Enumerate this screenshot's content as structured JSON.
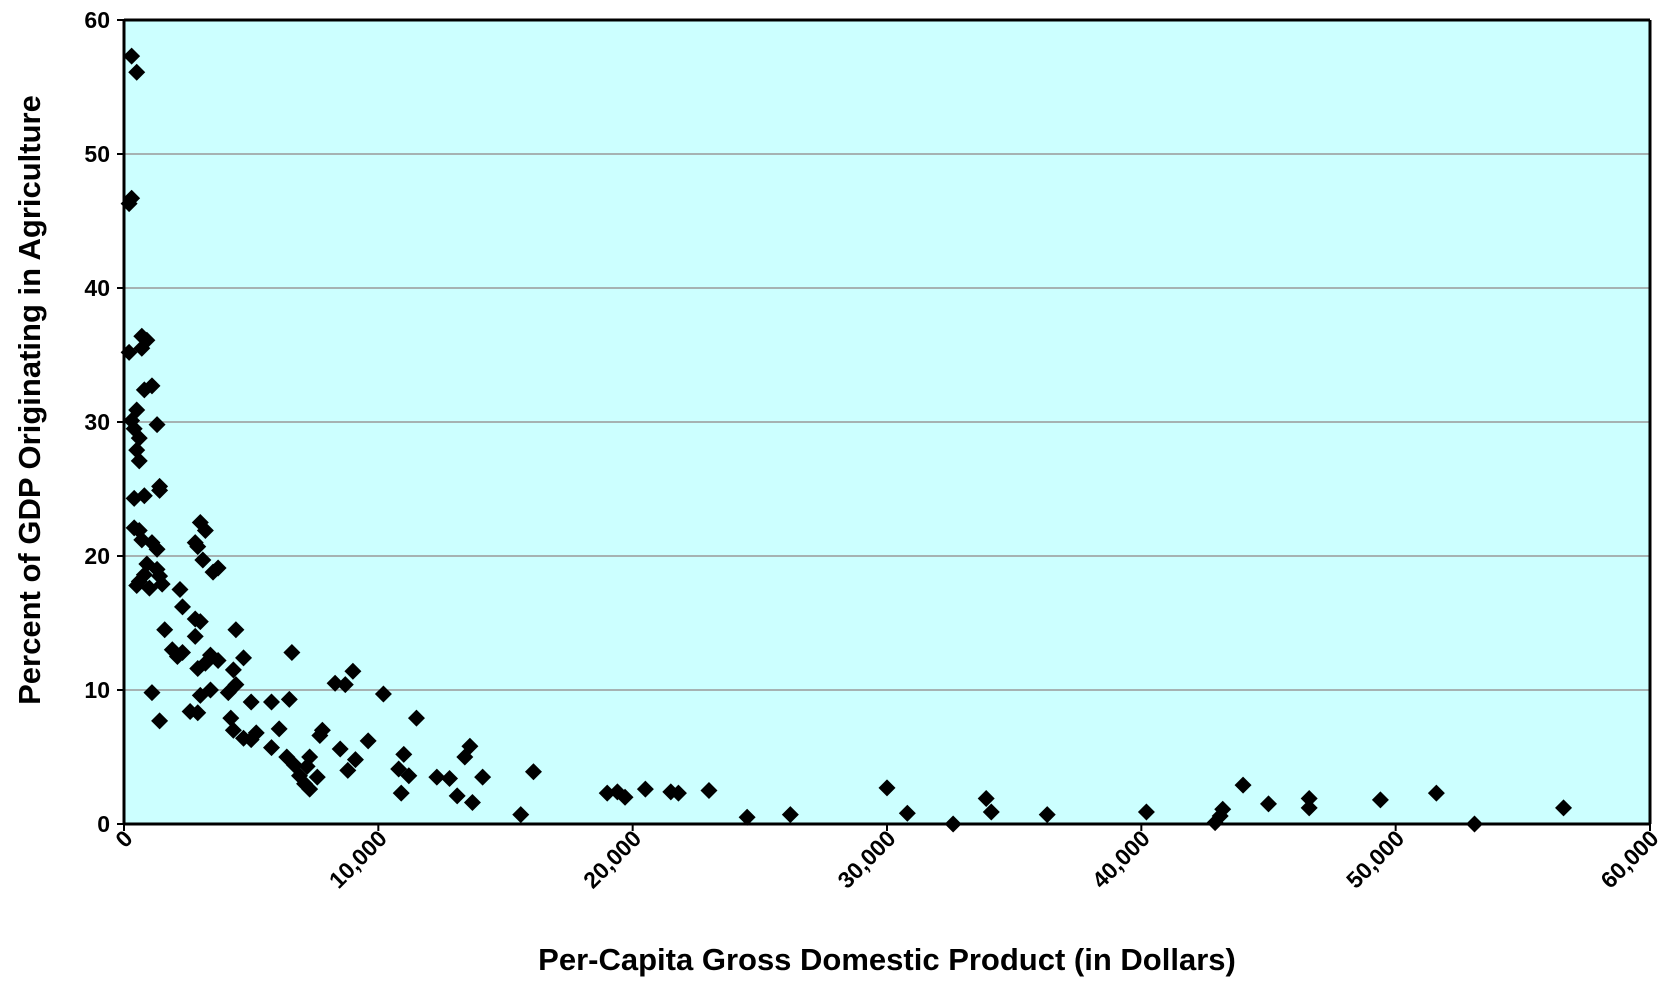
{
  "chart_data": {
    "type": "scatter",
    "title": "",
    "xlabel": "Per-Capita Gross Domestic Product (in Dollars)",
    "ylabel": "Percent of GDP Originating in Agriculture",
    "xlim": [
      0,
      60000
    ],
    "ylim": [
      0,
      60
    ],
    "xticks": [
      0,
      10000,
      20000,
      30000,
      40000,
      50000,
      60000
    ],
    "xtick_labels": [
      "0",
      "10,000",
      "20,000",
      "30,000",
      "40,000",
      "50,000",
      "60,000"
    ],
    "yticks": [
      0,
      10,
      20,
      30,
      40,
      50,
      60
    ],
    "ytick_labels": [
      "0",
      "10",
      "20",
      "30",
      "40",
      "50",
      "60"
    ],
    "grid": "horizontal",
    "legend": "none",
    "marker": "diamond",
    "colors": {
      "plot_background": "#ccffff",
      "marker": "#000000",
      "grid": "#999999",
      "axis": "#000000"
    },
    "points": [
      [
        300,
        57.3
      ],
      [
        500,
        56.1
      ],
      [
        200,
        46.3
      ],
      [
        300,
        46.7
      ],
      [
        200,
        35.2
      ],
      [
        700,
        36.4
      ],
      [
        700,
        35.5
      ],
      [
        900,
        36.1
      ],
      [
        800,
        32.4
      ],
      [
        1100,
        32.7
      ],
      [
        300,
        30.1
      ],
      [
        500,
        30.9
      ],
      [
        400,
        29.5
      ],
      [
        600,
        28.8
      ],
      [
        1300,
        29.8
      ],
      [
        500,
        27.9
      ],
      [
        600,
        27.1
      ],
      [
        400,
        24.3
      ],
      [
        800,
        24.5
      ],
      [
        1400,
        25.2
      ],
      [
        1400,
        24.9
      ],
      [
        400,
        22.1
      ],
      [
        600,
        21.9
      ],
      [
        700,
        21.2
      ],
      [
        1100,
        21.0
      ],
      [
        1300,
        20.5
      ],
      [
        900,
        19.4
      ],
      [
        1300,
        19.0
      ],
      [
        1400,
        18.5
      ],
      [
        600,
        18.1
      ],
      [
        800,
        18.6
      ],
      [
        500,
        17.8
      ],
      [
        1000,
        17.6
      ],
      [
        1500,
        17.9
      ],
      [
        1600,
        14.5
      ],
      [
        3000,
        22.5
      ],
      [
        3200,
        21.9
      ],
      [
        2800,
        21.0
      ],
      [
        2900,
        20.7
      ],
      [
        3100,
        19.7
      ],
      [
        3700,
        19.1
      ],
      [
        3500,
        18.8
      ],
      [
        2200,
        17.5
      ],
      [
        2300,
        16.2
      ],
      [
        2800,
        15.3
      ],
      [
        3000,
        15.1
      ],
      [
        2800,
        14.0
      ],
      [
        1900,
        13.0
      ],
      [
        2300,
        12.8
      ],
      [
        2100,
        12.5
      ],
      [
        3400,
        12.6
      ],
      [
        3700,
        12.2
      ],
      [
        3200,
        12.0
      ],
      [
        2900,
        11.6
      ],
      [
        4400,
        14.5
      ],
      [
        4700,
        12.4
      ],
      [
        4300,
        11.5
      ],
      [
        4400,
        10.4
      ],
      [
        4100,
        9.8
      ],
      [
        3400,
        10.0
      ],
      [
        3000,
        9.6
      ],
      [
        2600,
        8.4
      ],
      [
        2900,
        8.3
      ],
      [
        1100,
        9.8
      ],
      [
        1400,
        7.7
      ],
      [
        4200,
        7.9
      ],
      [
        4300,
        7.0
      ],
      [
        4700,
        6.4
      ],
      [
        5000,
        6.3
      ],
      [
        5200,
        6.8
      ],
      [
        5000,
        9.1
      ],
      [
        5800,
        9.1
      ],
      [
        6500,
        9.3
      ],
      [
        6600,
        12.8
      ],
      [
        5800,
        5.7
      ],
      [
        6100,
        7.1
      ],
      [
        6400,
        5.0
      ],
      [
        6700,
        4.4
      ],
      [
        6900,
        3.6
      ],
      [
        7100,
        3.0
      ],
      [
        7300,
        2.6
      ],
      [
        7200,
        4.3
      ],
      [
        7300,
        5.0
      ],
      [
        7600,
        3.5
      ],
      [
        7700,
        6.6
      ],
      [
        7800,
        7.0
      ],
      [
        8300,
        10.5
      ],
      [
        8700,
        10.4
      ],
      [
        9000,
        11.4
      ],
      [
        8500,
        5.6
      ],
      [
        8800,
        4.0
      ],
      [
        9100,
        4.8
      ],
      [
        9600,
        6.2
      ],
      [
        10200,
        9.7
      ],
      [
        11500,
        7.9
      ],
      [
        11000,
        5.2
      ],
      [
        10800,
        4.1
      ],
      [
        11200,
        3.6
      ],
      [
        10900,
        2.3
      ],
      [
        12300,
        3.5
      ],
      [
        12800,
        3.4
      ],
      [
        13100,
        2.1
      ],
      [
        13400,
        5.0
      ],
      [
        13600,
        5.8
      ],
      [
        14100,
        3.5
      ],
      [
        13700,
        1.6
      ],
      [
        15600,
        0.7
      ],
      [
        16100,
        3.9
      ],
      [
        19000,
        2.3
      ],
      [
        19400,
        2.4
      ],
      [
        19700,
        2.0
      ],
      [
        20500,
        2.6
      ],
      [
        21500,
        2.4
      ],
      [
        21800,
        2.3
      ],
      [
        23000,
        2.5
      ],
      [
        24500,
        0.5
      ],
      [
        26200,
        0.7
      ],
      [
        30000,
        2.7
      ],
      [
        30800,
        0.8
      ],
      [
        32600,
        0.0
      ],
      [
        33900,
        1.9
      ],
      [
        34100,
        0.9
      ],
      [
        36300,
        0.7
      ],
      [
        40200,
        0.9
      ],
      [
        42900,
        0.1
      ],
      [
        43100,
        0.6
      ],
      [
        43200,
        1.1
      ],
      [
        44000,
        2.9
      ],
      [
        45000,
        1.5
      ],
      [
        46600,
        1.9
      ],
      [
        46600,
        1.2
      ],
      [
        49400,
        1.8
      ],
      [
        51600,
        2.3
      ],
      [
        53100,
        0.0
      ],
      [
        56600,
        1.2
      ]
    ]
  }
}
